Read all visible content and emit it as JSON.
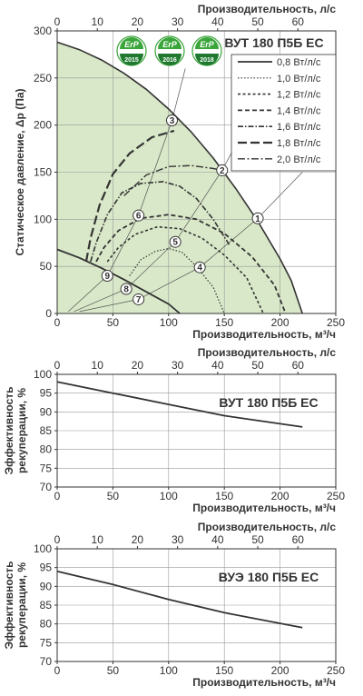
{
  "colors": {
    "fill": "#d9e8c8",
    "grid": "#999999",
    "axis": "#333333",
    "curve": "#333333",
    "thin": "#555555",
    "erp_green": "#3aa53a",
    "erp_dark": "#1f7a2f"
  },
  "erp": [
    "ErP",
    "ErP",
    "ErP"
  ],
  "erp_years": [
    "2015",
    "2016",
    "2018"
  ],
  "chart_data": [
    {
      "type": "line",
      "title": "ВУТ 180 П5Б ЕС",
      "xlabel": "Производительность, м³/ч",
      "x2label": "Производительность, л/с",
      "ylabel": "Статическое давление, Δp (Па)",
      "xlim": [
        0,
        250
      ],
      "x2lim": [
        0,
        69.44
      ],
      "ylim": [
        0,
        300
      ],
      "xticks": [
        0,
        50,
        100,
        150,
        200,
        250
      ],
      "x2ticks": [
        0,
        10,
        20,
        30,
        40,
        50,
        60
      ],
      "yticks": [
        0,
        50,
        100,
        150,
        200,
        250,
        300
      ],
      "grid": true,
      "legend_position": "top-right",
      "envelope": [
        [
          0,
          288
        ],
        [
          20,
          280
        ],
        [
          40,
          269
        ],
        [
          60,
          255
        ],
        [
          80,
          238
        ],
        [
          100,
          217
        ],
        [
          120,
          193
        ],
        [
          140,
          165
        ],
        [
          160,
          133
        ],
        [
          180,
          98
        ],
        [
          200,
          58
        ],
        [
          210,
          35
        ],
        [
          220,
          0
        ]
      ],
      "series": [
        {
          "name": "0,8 Вт/л/с",
          "style": "solid",
          "points": [
            [
              0,
              68
            ],
            [
              20,
              59
            ],
            [
              40,
              48
            ],
            [
              60,
              36
            ],
            [
              80,
              23
            ],
            [
              100,
              10
            ],
            [
              110,
              0
            ]
          ]
        },
        {
          "name": "1,0 Вт/л/с",
          "style": "dotted",
          "points": [
            [
              65,
              40
            ],
            [
              75,
              57
            ],
            [
              88,
              66
            ],
            [
              100,
              69
            ],
            [
              112,
              65
            ],
            [
              125,
              50
            ],
            [
              140,
              28
            ],
            [
              150,
              0
            ]
          ]
        },
        {
          "name": "1,2 Вт/л/с",
          "style": "dashed-short",
          "points": [
            [
              45,
              55
            ],
            [
              55,
              70
            ],
            [
              70,
              84
            ],
            [
              90,
              92
            ],
            [
              110,
              90
            ],
            [
              130,
              80
            ],
            [
              150,
              62
            ],
            [
              170,
              38
            ],
            [
              185,
              0
            ]
          ]
        },
        {
          "name": "1,4 Вт/л/с",
          "style": "dashed",
          "points": [
            [
              35,
              55
            ],
            [
              42,
              70
            ],
            [
              55,
              88
            ],
            [
              75,
              101
            ],
            [
              100,
              105
            ],
            [
              125,
              100
            ],
            [
              150,
              85
            ],
            [
              175,
              60
            ],
            [
              195,
              30
            ],
            [
              205,
              0
            ]
          ]
        },
        {
          "name": "1,6 Вт/л/с",
          "style": "dashdot",
          "points": [
            [
              30,
              55
            ],
            [
              35,
              75
            ],
            [
              45,
              105
            ],
            [
              58,
              128
            ],
            [
              75,
              138
            ],
            [
              95,
              140
            ],
            [
              110,
              135
            ],
            [
              125,
              122
            ],
            [
              140,
              100
            ],
            [
              155,
              72
            ]
          ]
        },
        {
          "name": "1,8 Вт/л/с",
          "style": "longdash",
          "points": [
            [
              26,
              55
            ],
            [
              30,
              80
            ],
            [
              38,
              115
            ],
            [
              50,
              148
            ],
            [
              65,
              170
            ],
            [
              85,
              187
            ],
            [
              105,
              194
            ]
          ]
        },
        {
          "name": "2,0 Вт/л/с",
          "style": "dashdot-long",
          "points": [
            [
              60,
              125
            ],
            [
              80,
              147
            ],
            [
              100,
              156
            ],
            [
              120,
              157
            ],
            [
              140,
              154
            ],
            [
              148,
              152
            ]
          ]
        }
      ],
      "markers": [
        {
          "label": "1",
          "x": 180,
          "y": 101
        },
        {
          "label": "2",
          "x": 148,
          "y": 152
        },
        {
          "label": "3",
          "x": 103,
          "y": 205
        },
        {
          "label": "4",
          "x": 128,
          "y": 49
        },
        {
          "label": "5",
          "x": 106,
          "y": 76
        },
        {
          "label": "6",
          "x": 73,
          "y": 104
        },
        {
          "label": "7",
          "x": 73,
          "y": 15
        },
        {
          "label": "8",
          "x": 62,
          "y": 26
        },
        {
          "label": "9",
          "x": 45,
          "y": 40
        }
      ],
      "system_lines": [
        [
          [
            20,
            2
          ],
          [
            73,
            15
          ],
          [
            128,
            49
          ],
          [
            180,
            101
          ],
          [
            220,
            150
          ]
        ],
        [
          [
            15,
            2
          ],
          [
            62,
            26
          ],
          [
            106,
            76
          ],
          [
            148,
            152
          ],
          [
            170,
            200
          ]
        ],
        [
          [
            10,
            2
          ],
          [
            45,
            40
          ],
          [
            73,
            104
          ],
          [
            103,
            205
          ],
          [
            115,
            260
          ]
        ]
      ]
    },
    {
      "type": "line",
      "title": "ВУТ 180 П5Б ЕС",
      "xlabel": "Производительность, м³/ч",
      "x2label": "Производительность, л/с",
      "ylabel": "Эффективность рекуперации, %",
      "xlim": [
        0,
        250
      ],
      "x2lim": [
        0,
        69.44
      ],
      "ylim": [
        70,
        100
      ],
      "xticks": [
        0,
        50,
        100,
        150,
        200,
        250
      ],
      "x2ticks": [
        0,
        10,
        20,
        30,
        40,
        50,
        60
      ],
      "yticks": [
        70,
        75,
        80,
        85,
        90,
        95,
        100
      ],
      "grid": true,
      "series": [
        {
          "points": [
            [
              0,
              98
            ],
            [
              50,
              95
            ],
            [
              100,
              92
            ],
            [
              150,
              89
            ],
            [
              220,
              86
            ]
          ]
        }
      ]
    },
    {
      "type": "line",
      "title": "ВУЭ 180 П5Б ЕС",
      "xlabel": "Производительность, м³/ч",
      "x2label": "Производительность, л/с",
      "ylabel": "Эффективность рекуперации, %",
      "xlim": [
        0,
        250
      ],
      "x2lim": [
        0,
        69.44
      ],
      "ylim": [
        70,
        100
      ],
      "xticks": [
        0,
        50,
        100,
        150,
        200,
        250
      ],
      "x2ticks": [
        0,
        10,
        20,
        30,
        40,
        50,
        60
      ],
      "yticks": [
        70,
        75,
        80,
        85,
        90,
        95,
        100
      ],
      "grid": true,
      "series": [
        {
          "points": [
            [
              0,
              94
            ],
            [
              50,
              90.5
            ],
            [
              100,
              86.5
            ],
            [
              150,
              83
            ],
            [
              220,
              79
            ]
          ]
        }
      ]
    }
  ]
}
